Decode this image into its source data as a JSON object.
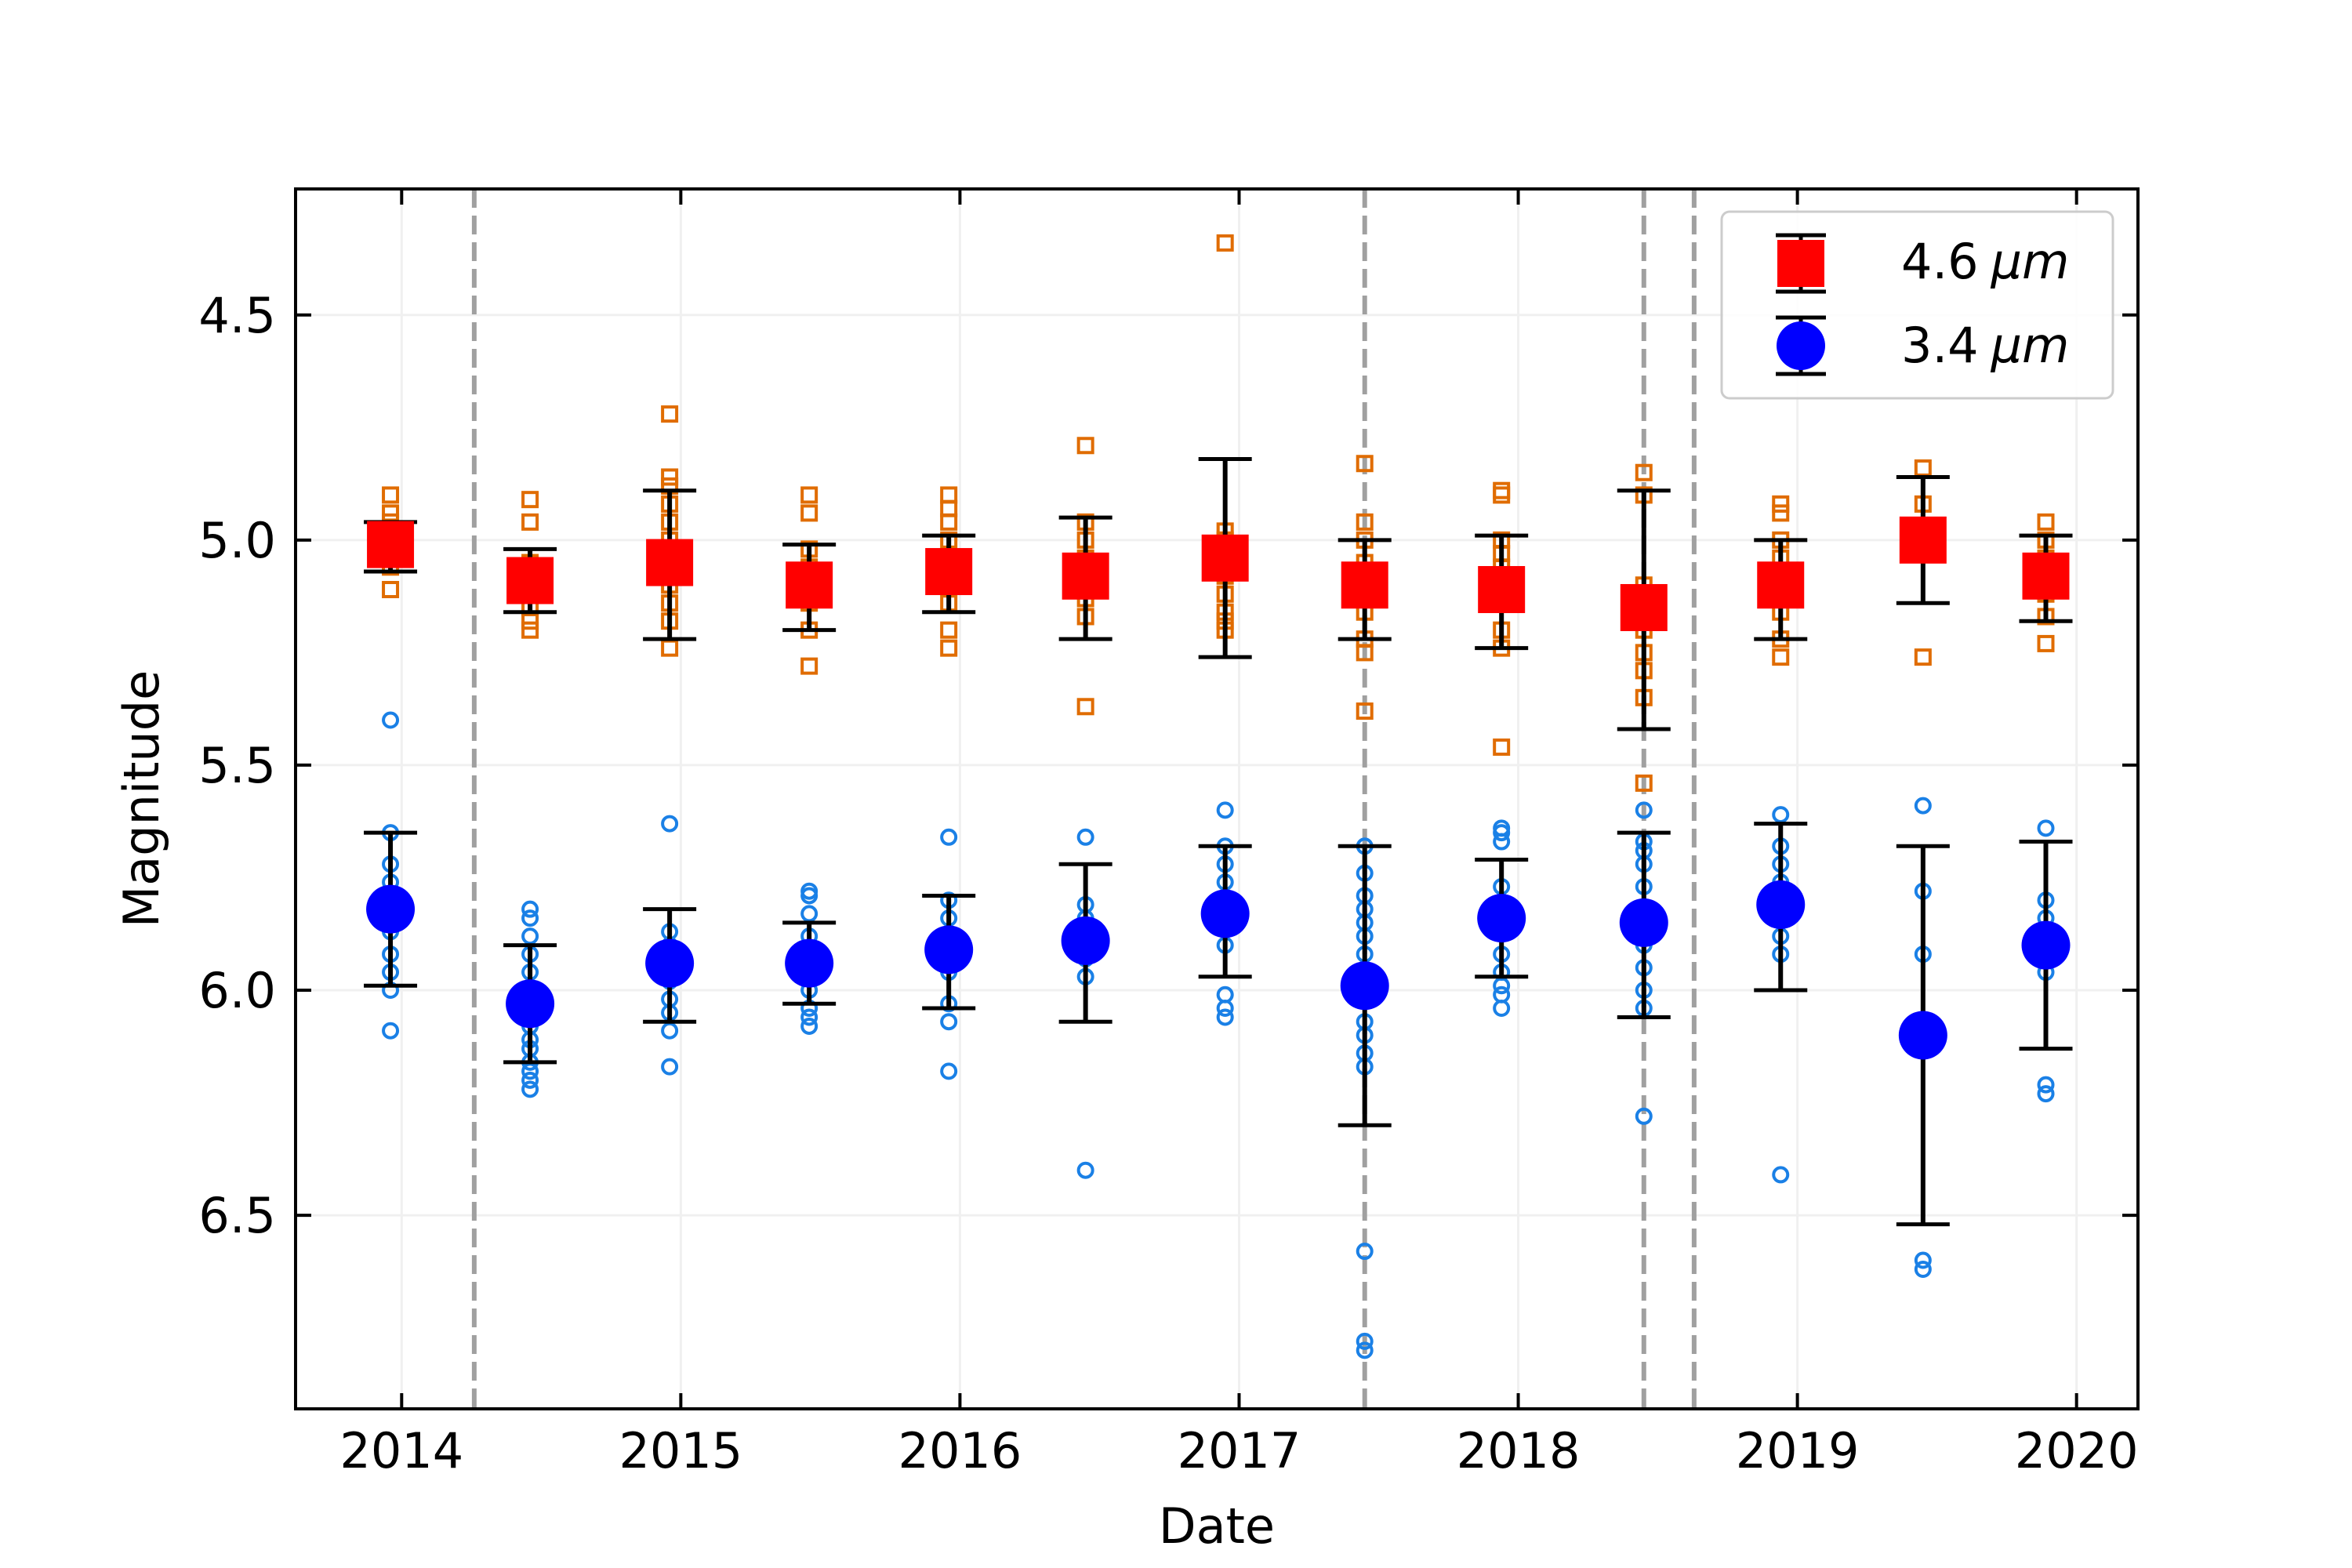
{
  "chart_data": {
    "type": "scatter",
    "title": "",
    "xlabel": "Date",
    "ylabel": "Magnitude",
    "xlim": [
      2013.62,
      2020.22
    ],
    "ylim": [
      6.93,
      4.22
    ],
    "y_inverted": true,
    "grid": true,
    "legend_position": "top-right",
    "x_ticks": [
      2014,
      2015,
      2016,
      2017,
      2018,
      2019,
      2020
    ],
    "x_tick_labels": [
      "2014",
      "2015",
      "2016",
      "2017",
      "2018",
      "2019",
      "2020"
    ],
    "y_ticks": [
      4.5,
      5.0,
      5.5,
      6.0,
      6.5
    ],
    "y_tick_labels": [
      "4.5",
      "5.0",
      "5.5",
      "6.0",
      "6.5"
    ],
    "vertical_lines": [
      2014.26,
      2017.45,
      2018.45,
      2018.63
    ],
    "colors": {
      "w2_mean": "#ff0000",
      "w2_points": "#e06c00",
      "w1_mean": "#0000ff",
      "w1_points": "#1a80e6",
      "errorbar": "#000000",
      "vline": "#a0a0a0",
      "grid": "#f0f0f0"
    },
    "legend": [
      {
        "label_value": "4.6",
        "label_unit": "μm",
        "series": "w2_mean",
        "marker": "square"
      },
      {
        "label_value": "3.4",
        "label_unit": "μm",
        "series": "w1_mean",
        "marker": "circle"
      }
    ],
    "series": [
      {
        "name": "4.6 μm",
        "role": "mean",
        "marker": "square",
        "color": "#ff0000",
        "x": [
          2013.96,
          2014.46,
          2014.96,
          2015.46,
          2015.96,
          2016.45,
          2016.95,
          2017.45,
          2017.94,
          2018.45,
          2018.94,
          2019.45,
          2019.89
        ],
        "y": [
          5.01,
          5.09,
          5.05,
          5.1,
          5.07,
          5.08,
          5.04,
          5.1,
          5.11,
          5.15,
          5.1,
          5.0,
          5.08
        ],
        "ylow": [
          4.96,
          5.02,
          4.89,
          5.01,
          4.99,
          4.95,
          4.82,
          5.0,
          4.99,
          4.89,
          5.0,
          4.86,
          4.99
        ],
        "yhigh": [
          5.07,
          5.16,
          5.22,
          5.2,
          5.16,
          5.22,
          5.26,
          5.22,
          5.24,
          5.42,
          5.22,
          5.14,
          5.18
        ]
      },
      {
        "name": "3.4 μm",
        "role": "mean",
        "marker": "circle",
        "color": "#0000ff",
        "x": [
          2013.96,
          2014.46,
          2014.96,
          2015.46,
          2015.96,
          2016.45,
          2016.95,
          2017.45,
          2017.94,
          2018.45,
          2018.94,
          2019.45,
          2019.89
        ],
        "y": [
          5.82,
          6.03,
          5.94,
          5.94,
          5.91,
          5.89,
          5.83,
          5.99,
          5.84,
          5.85,
          5.81,
          6.1,
          5.9
        ],
        "ylow": [
          5.65,
          5.9,
          5.82,
          5.85,
          5.79,
          5.72,
          5.68,
          5.68,
          5.71,
          5.65,
          5.63,
          5.68,
          5.67
        ],
        "yhigh": [
          5.99,
          6.16,
          6.07,
          6.03,
          6.04,
          6.07,
          5.97,
          6.3,
          5.97,
          6.06,
          6.0,
          6.52,
          6.13
        ]
      },
      {
        "name": "4.6 μm single exposures",
        "role": "points",
        "marker": "open-square",
        "color": "#e06c00",
        "x": [
          2013.96,
          2013.96,
          2013.96,
          2013.96,
          2013.96,
          2013.96,
          2013.96,
          2014.46,
          2014.46,
          2014.46,
          2014.46,
          2014.46,
          2014.46,
          2014.46,
          2014.46,
          2014.96,
          2014.96,
          2014.96,
          2014.96,
          2014.96,
          2014.96,
          2014.96,
          2014.96,
          2014.96,
          2014.96,
          2014.96,
          2015.46,
          2015.46,
          2015.46,
          2015.46,
          2015.46,
          2015.46,
          2015.46,
          2015.46,
          2015.96,
          2015.96,
          2015.96,
          2015.96,
          2015.96,
          2015.96,
          2015.96,
          2015.96,
          2015.96,
          2016.45,
          2016.45,
          2016.45,
          2016.45,
          2016.45,
          2016.45,
          2016.45,
          2016.45,
          2016.95,
          2016.95,
          2016.95,
          2016.95,
          2016.95,
          2016.95,
          2016.95,
          2016.95,
          2016.95,
          2017.45,
          2017.45,
          2017.45,
          2017.45,
          2017.45,
          2017.45,
          2017.45,
          2017.45,
          2017.45,
          2017.94,
          2017.94,
          2017.94,
          2017.94,
          2017.94,
          2017.94,
          2017.94,
          2017.94,
          2017.94,
          2017.94,
          2018.45,
          2018.45,
          2018.45,
          2018.45,
          2018.45,
          2018.45,
          2018.45,
          2018.45,
          2018.45,
          2018.94,
          2018.94,
          2018.94,
          2018.94,
          2018.94,
          2018.94,
          2018.94,
          2018.94,
          2018.94,
          2019.45,
          2019.45,
          2019.45,
          2019.45,
          2019.89,
          2019.89,
          2019.89,
          2019.89,
          2019.89,
          2019.89,
          2019.89
        ],
        "y": [
          4.9,
          4.94,
          4.96,
          5.0,
          5.03,
          5.06,
          5.11,
          4.91,
          4.96,
          5.05,
          5.08,
          5.12,
          5.15,
          5.18,
          5.2,
          4.72,
          4.86,
          4.88,
          4.92,
          4.96,
          5.0,
          5.05,
          5.1,
          5.14,
          5.18,
          5.24,
          4.9,
          4.94,
          5.02,
          5.06,
          5.1,
          5.14,
          5.2,
          5.28,
          4.9,
          4.93,
          4.96,
          5.0,
          5.04,
          5.08,
          5.14,
          5.2,
          5.24,
          4.79,
          4.96,
          5.0,
          5.04,
          5.09,
          5.13,
          5.17,
          5.37,
          4.34,
          4.98,
          5.0,
          5.03,
          5.08,
          5.12,
          5.16,
          5.18,
          5.2,
          4.83,
          4.96,
          5.0,
          5.05,
          5.1,
          5.16,
          5.22,
          5.25,
          5.38,
          4.89,
          4.9,
          5.0,
          5.03,
          5.06,
          5.1,
          5.14,
          5.2,
          5.24,
          5.46,
          4.85,
          4.9,
          5.1,
          5.15,
          5.2,
          5.25,
          5.29,
          5.35,
          5.54,
          4.92,
          4.94,
          5.0,
          5.04,
          5.08,
          5.12,
          5.16,
          5.22,
          5.26,
          4.84,
          4.92,
          5.0,
          5.26,
          4.96,
          5.0,
          5.04,
          5.08,
          5.12,
          5.17,
          5.23
        ]
      },
      {
        "name": "3.4 μm single exposures",
        "role": "points",
        "marker": "open-circle",
        "color": "#1a80e6",
        "x": [
          2013.96,
          2013.96,
          2013.96,
          2013.96,
          2013.96,
          2013.96,
          2013.96,
          2013.96,
          2013.96,
          2013.96,
          2014.46,
          2014.46,
          2014.46,
          2014.46,
          2014.46,
          2014.46,
          2014.46,
          2014.46,
          2014.46,
          2014.46,
          2014.46,
          2014.46,
          2014.46,
          2014.46,
          2014.96,
          2014.96,
          2014.96,
          2014.96,
          2014.96,
          2014.96,
          2014.96,
          2014.96,
          2014.96,
          2015.46,
          2015.46,
          2015.46,
          2015.46,
          2015.46,
          2015.46,
          2015.46,
          2015.46,
          2015.46,
          2015.46,
          2015.96,
          2015.96,
          2015.96,
          2015.96,
          2015.96,
          2015.96,
          2015.96,
          2015.96,
          2015.96,
          2016.45,
          2016.45,
          2016.45,
          2016.45,
          2016.45,
          2016.45,
          2016.45,
          2016.95,
          2016.95,
          2016.95,
          2016.95,
          2016.95,
          2016.95,
          2016.95,
          2016.95,
          2016.95,
          2017.45,
          2017.45,
          2017.45,
          2017.45,
          2017.45,
          2017.45,
          2017.45,
          2017.45,
          2017.45,
          2017.45,
          2017.45,
          2017.45,
          2017.45,
          2017.45,
          2017.45,
          2017.94,
          2017.94,
          2017.94,
          2017.94,
          2017.94,
          2017.94,
          2017.94,
          2017.94,
          2017.94,
          2017.94,
          2017.94,
          2018.45,
          2018.45,
          2018.45,
          2018.45,
          2018.45,
          2018.45,
          2018.45,
          2018.45,
          2018.45,
          2018.45,
          2018.45,
          2018.94,
          2018.94,
          2018.94,
          2018.94,
          2018.94,
          2018.94,
          2018.94,
          2018.94,
          2019.45,
          2019.45,
          2019.45,
          2019.45,
          2019.45,
          2019.89,
          2019.89,
          2019.89,
          2019.89,
          2019.89,
          2019.89,
          2019.89
        ],
        "y": [
          5.4,
          5.65,
          5.72,
          5.76,
          5.8,
          5.87,
          5.92,
          5.96,
          6.0,
          6.09,
          5.82,
          5.84,
          5.88,
          5.92,
          5.96,
          6.0,
          6.04,
          6.08,
          6.11,
          6.13,
          6.16,
          6.18,
          6.2,
          6.22,
          5.63,
          5.87,
          5.9,
          5.94,
          5.98,
          6.02,
          6.05,
          6.09,
          6.17,
          5.78,
          5.79,
          5.83,
          5.88,
          5.92,
          5.96,
          6.0,
          6.04,
          6.06,
          6.08,
          5.66,
          5.8,
          5.84,
          5.88,
          5.92,
          5.96,
          6.03,
          6.07,
          6.18,
          5.66,
          5.81,
          5.84,
          5.87,
          5.93,
          5.97,
          6.4,
          5.6,
          5.68,
          5.72,
          5.76,
          5.8,
          5.9,
          6.01,
          6.04,
          6.06,
          5.68,
          5.74,
          5.79,
          5.82,
          5.85,
          5.88,
          5.92,
          5.96,
          6.07,
          6.1,
          6.14,
          6.17,
          6.58,
          6.78,
          6.8,
          5.64,
          5.65,
          5.67,
          5.77,
          5.83,
          5.87,
          5.92,
          5.96,
          5.99,
          6.01,
          6.04,
          5.6,
          5.67,
          5.69,
          5.72,
          5.77,
          5.82,
          5.9,
          5.95,
          6.0,
          6.04,
          6.28,
          5.61,
          5.68,
          5.72,
          5.76,
          5.84,
          5.88,
          5.92,
          6.41,
          5.59,
          5.78,
          5.92,
          6.6,
          6.62,
          5.64,
          5.8,
          5.84,
          5.92,
          5.96,
          6.21,
          6.23
        ]
      }
    ]
  }
}
